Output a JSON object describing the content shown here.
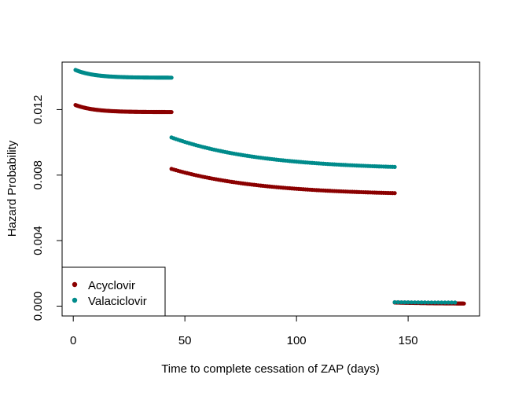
{
  "chart_data": {
    "type": "scatter",
    "title": "",
    "xlabel": "Time to complete cessation of ZAP (days)",
    "ylabel": "Hazard Probability",
    "xlim": [
      -5,
      182
    ],
    "ylim": [
      -0.0006,
      0.0149
    ],
    "xticks": [
      0,
      50,
      100,
      150
    ],
    "yticks": [
      0.0,
      0.004,
      0.008,
      0.012
    ],
    "xtick_labels": [
      "0",
      "50",
      "100",
      "150"
    ],
    "ytick_labels": [
      "0.000",
      "0.004",
      "0.008",
      "0.012"
    ],
    "legend": {
      "position": "bottom-left",
      "entries": [
        "Acyclovir",
        "Valaciclovir"
      ]
    },
    "series": [
      {
        "name": "Acyclovir",
        "color": "#8B0000",
        "segments": [
          {
            "x_start": 1,
            "x_end": 44,
            "x_step": 0.5,
            "y_start": 0.01228,
            "y_end": 0.01185,
            "decay": 0.12
          },
          {
            "x_start": 44,
            "x_end": 144,
            "x_step": 1,
            "y_start": 0.00838,
            "y_end": 0.0069,
            "decay": 0.025
          },
          {
            "x_start": 144,
            "x_end": 175,
            "x_step": 0.5,
            "y_start": 0.00022,
            "y_end": 0.00016,
            "decay": 0.05
          }
        ]
      },
      {
        "name": "Valaciclovir",
        "color": "#008B8B",
        "segments": [
          {
            "x_start": 1,
            "x_end": 44,
            "x_step": 0.5,
            "y_start": 0.01442,
            "y_end": 0.01395,
            "decay": 0.12
          },
          {
            "x_start": 44,
            "x_end": 144,
            "x_step": 1,
            "y_start": 0.0103,
            "y_end": 0.0085,
            "decay": 0.025
          },
          {
            "x_start": 144,
            "x_end": 171,
            "x_step": 1.5,
            "y_start": 0.00024,
            "y_end": 0.00022,
            "decay": 0.05
          }
        ]
      }
    ]
  }
}
